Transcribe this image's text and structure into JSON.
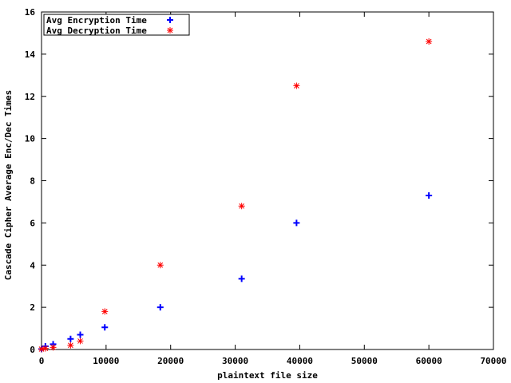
{
  "chart_data": {
    "type": "scatter",
    "title": "",
    "xlabel": "plaintext file size",
    "ylabel": "Cascade Cipher Average Enc/Dec Times",
    "xlim": [
      0,
      70000
    ],
    "ylim": [
      0,
      16
    ],
    "x_ticks": [
      "0",
      "10000",
      "20000",
      "30000",
      "40000",
      "50000",
      "60000",
      "70000"
    ],
    "y_ticks": [
      "0",
      "2",
      "4",
      "6",
      "8",
      "10",
      "12",
      "14",
      "16"
    ],
    "grid": false,
    "legend_position": "top-left",
    "series": [
      {
        "name": "Avg Encryption Time",
        "marker": "plus",
        "color": "#0000ff",
        "x": [
          0,
          600,
          1800,
          4500,
          6000,
          9800,
          18400,
          31000,
          39500,
          60000
        ],
        "y": [
          0.02,
          0.15,
          0.25,
          0.5,
          0.7,
          1.05,
          2.0,
          3.35,
          6.0,
          7.3
        ]
      },
      {
        "name": "Avg Decryption Time",
        "marker": "star",
        "color": "#ff0000",
        "x": [
          0,
          600,
          1800,
          4500,
          6000,
          9800,
          18400,
          31000,
          39500,
          60000
        ],
        "y": [
          0.02,
          0.05,
          0.1,
          0.2,
          0.4,
          1.8,
          4.0,
          6.8,
          12.5,
          14.6
        ]
      }
    ]
  }
}
